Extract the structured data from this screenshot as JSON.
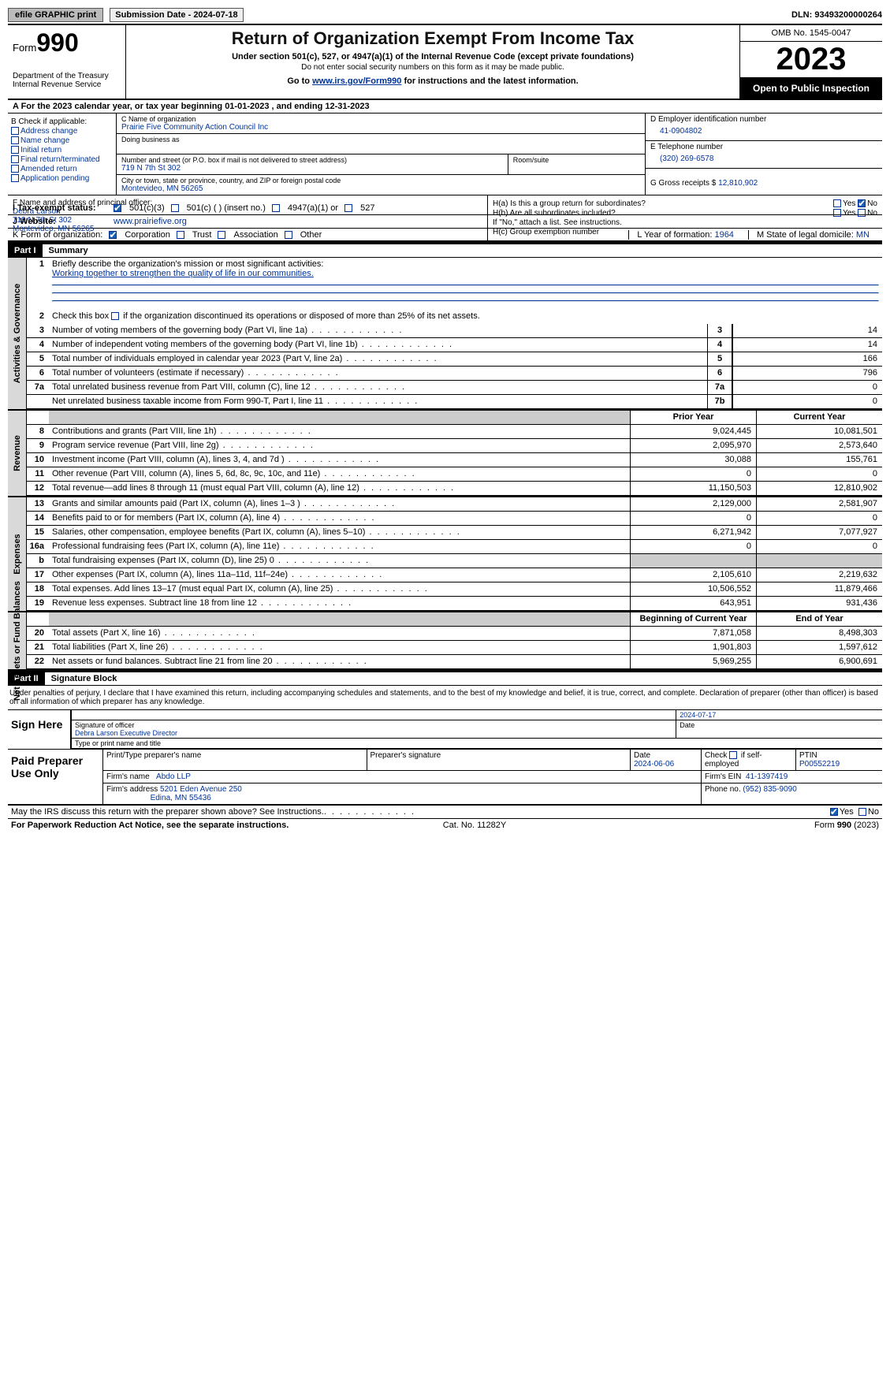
{
  "topbar": {
    "efile_btn": "efile GRAPHIC print",
    "submission_label": "Submission Date - 2024-07-18",
    "dln": "DLN: 93493200000264"
  },
  "header": {
    "form_word": "Form",
    "form_num": "990",
    "title": "Return of Organization Exempt From Income Tax",
    "sub1": "Under section 501(c), 527, or 4947(a)(1) of the Internal Revenue Code (except private foundations)",
    "sub2": "Do not enter social security numbers on this form as it may be made public.",
    "sub3_pre": "Go to ",
    "sub3_link": "www.irs.gov/Form990",
    "sub3_post": " for instructions and the latest information.",
    "dept": "Department of the Treasury\nInternal Revenue Service",
    "omb": "OMB No. 1545-0047",
    "year": "2023",
    "open": "Open to Public Inspection"
  },
  "rowA": "A For the 2023 calendar year, or tax year beginning 01-01-2023   , and ending 12-31-2023",
  "boxB": {
    "label": "B Check if applicable:",
    "items": [
      "Address change",
      "Name change",
      "Initial return",
      "Final return/terminated",
      "Amended return",
      "Application pending"
    ]
  },
  "boxC": {
    "name_label": "C Name of organization",
    "name": "Prairie Five Community Action Council Inc",
    "dba_label": "Doing business as",
    "addr_label": "Number and street (or P.O. box if mail is not delivered to street address)",
    "room_label": "Room/suite",
    "addr": "719 N 7th St 302",
    "city_label": "City or town, state or province, country, and ZIP or foreign postal code",
    "city": "Montevideo, MN  56265"
  },
  "boxD": {
    "label": "D Employer identification number",
    "value": "41-0904802"
  },
  "boxE": {
    "label": "E Telephone number",
    "value": "(320) 269-6578"
  },
  "boxG": {
    "label": "G Gross receipts $",
    "value": "12,810,902"
  },
  "officer": {
    "label": "F  Name and address of principal officer:",
    "name": "Debra Larson",
    "addr1": "719 N 7th St 302",
    "addr2": "Montevideo, MN  56265"
  },
  "boxH": {
    "a": "H(a)  Is this a group return for subordinates?",
    "b": "H(b)  Are all subordinates included?",
    "b2": "If \"No,\" attach a list. See instructions.",
    "c": "H(c)  Group exemption number",
    "yes": "Yes",
    "no": "No"
  },
  "taxExempt": {
    "label": "I   Tax-exempt status:",
    "c3": "501(c)(3)",
    "c": "501(c) (  ) (insert no.)",
    "a1": "4947(a)(1) or",
    "s527": "527"
  },
  "website": {
    "label": "J   Website:",
    "value": "www.prairiefive.org"
  },
  "formOrg": {
    "label": "K Form of organization:",
    "corp": "Corporation",
    "trust": "Trust",
    "assoc": "Association",
    "other": "Other"
  },
  "boxL": {
    "label": "L Year of formation:",
    "value": "1964"
  },
  "boxM": {
    "label": "M State of legal domicile:",
    "value": "MN"
  },
  "part1": {
    "num": "Part I",
    "title": "Summary"
  },
  "summary": {
    "gov": {
      "side": "Activities & Governance",
      "l1": "Briefly describe the organization's mission or most significant activities:",
      "l1v": "Working together to strengthen the quality of life in our communities.",
      "l2": "Check this box        if the organization discontinued its operations or disposed of more than 25% of its net assets.",
      "rows": [
        {
          "n": "3",
          "d": "Number of voting members of the governing body (Part VI, line 1a)",
          "k": "3",
          "v": "14"
        },
        {
          "n": "4",
          "d": "Number of independent voting members of the governing body (Part VI, line 1b)",
          "k": "4",
          "v": "14"
        },
        {
          "n": "5",
          "d": "Total number of individuals employed in calendar year 2023 (Part V, line 2a)",
          "k": "5",
          "v": "166"
        },
        {
          "n": "6",
          "d": "Total number of volunteers (estimate if necessary)",
          "k": "6",
          "v": "796"
        },
        {
          "n": "7a",
          "d": "Total unrelated business revenue from Part VIII, column (C), line 12",
          "k": "7a",
          "v": "0"
        },
        {
          "n": "",
          "d": "Net unrelated business taxable income from Form 990-T, Part I, line 11",
          "k": "7b",
          "v": "0"
        }
      ]
    },
    "rev": {
      "side": "Revenue",
      "head_prior": "Prior Year",
      "head_curr": "Current Year",
      "rows": [
        {
          "n": "8",
          "d": "Contributions and grants (Part VIII, line 1h)",
          "p": "9,024,445",
          "c": "10,081,501"
        },
        {
          "n": "9",
          "d": "Program service revenue (Part VIII, line 2g)",
          "p": "2,095,970",
          "c": "2,573,640"
        },
        {
          "n": "10",
          "d": "Investment income (Part VIII, column (A), lines 3, 4, and 7d )",
          "p": "30,088",
          "c": "155,761"
        },
        {
          "n": "11",
          "d": "Other revenue (Part VIII, column (A), lines 5, 6d, 8c, 9c, 10c, and 11e)",
          "p": "0",
          "c": "0"
        },
        {
          "n": "12",
          "d": "Total revenue—add lines 8 through 11 (must equal Part VIII, column (A), line 12)",
          "p": "11,150,503",
          "c": "12,810,902"
        }
      ]
    },
    "exp": {
      "side": "Expenses",
      "rows": [
        {
          "n": "13",
          "d": "Grants and similar amounts paid (Part IX, column (A), lines 1–3 )",
          "p": "2,129,000",
          "c": "2,581,907"
        },
        {
          "n": "14",
          "d": "Benefits paid to or for members (Part IX, column (A), line 4)",
          "p": "0",
          "c": "0"
        },
        {
          "n": "15",
          "d": "Salaries, other compensation, employee benefits (Part IX, column (A), lines 5–10)",
          "p": "6,271,942",
          "c": "7,077,927"
        },
        {
          "n": "16a",
          "d": "Professional fundraising fees (Part IX, column (A), line 11e)",
          "p": "0",
          "c": "0"
        },
        {
          "n": "b",
          "d": "Total fundraising expenses (Part IX, column (D), line 25) 0",
          "p": "",
          "c": "",
          "shaded": true
        },
        {
          "n": "17",
          "d": "Other expenses (Part IX, column (A), lines 11a–11d, 11f–24e)",
          "p": "2,105,610",
          "c": "2,219,632"
        },
        {
          "n": "18",
          "d": "Total expenses. Add lines 13–17 (must equal Part IX, column (A), line 25)",
          "p": "10,506,552",
          "c": "11,879,466"
        },
        {
          "n": "19",
          "d": "Revenue less expenses. Subtract line 18 from line 12",
          "p": "643,951",
          "c": "931,436"
        }
      ]
    },
    "net": {
      "side": "Net Assets or Fund Balances",
      "head_beg": "Beginning of Current Year",
      "head_end": "End of Year",
      "rows": [
        {
          "n": "20",
          "d": "Total assets (Part X, line 16)",
          "p": "7,871,058",
          "c": "8,498,303"
        },
        {
          "n": "21",
          "d": "Total liabilities (Part X, line 26)",
          "p": "1,901,803",
          "c": "1,597,612"
        },
        {
          "n": "22",
          "d": "Net assets or fund balances. Subtract line 21 from line 20",
          "p": "5,969,255",
          "c": "6,900,691"
        }
      ]
    }
  },
  "part2": {
    "num": "Part II",
    "title": "Signature Block"
  },
  "sig": {
    "preamble": "Under penalties of perjury, I declare that I have examined this return, including accompanying schedules and statements, and to the best of my knowledge and belief, it is true, correct, and complete. Declaration of preparer (other than officer) is based on all information of which preparer has any knowledge.",
    "sign_here": "Sign Here",
    "date": "2024-07-17",
    "sig_officer_lbl": "Signature of officer",
    "officer_name": "Debra Larson  Executive Director",
    "type_lbl": "Type or print name and title",
    "date_lbl": "Date"
  },
  "paid": {
    "label": "Paid Preparer Use Only",
    "print_lbl": "Print/Type preparer's name",
    "psig_lbl": "Preparer's signature",
    "pdate_lbl": "Date",
    "pdate": "2024-06-06",
    "check_lbl": "Check          if self-employed",
    "ptin_lbl": "PTIN",
    "ptin": "P00552219",
    "firm_name_lbl": "Firm's name",
    "firm_name": "Abdo LLP",
    "firm_ein_lbl": "Firm's EIN",
    "firm_ein": "41-1397419",
    "firm_addr_lbl": "Firm's address",
    "firm_addr1": "5201 Eden Avenue 250",
    "firm_addr2": "Edina, MN  55436",
    "phone_lbl": "Phone no.",
    "phone": "(952) 835-9090"
  },
  "may": {
    "text": "May the IRS discuss this return with the preparer shown above? See Instructions.",
    "yes": "Yes",
    "no": "No"
  },
  "footer": {
    "left": "For Paperwork Reduction Act Notice, see the separate instructions.",
    "mid": "Cat. No. 11282Y",
    "right": "Form 990 (2023)"
  }
}
